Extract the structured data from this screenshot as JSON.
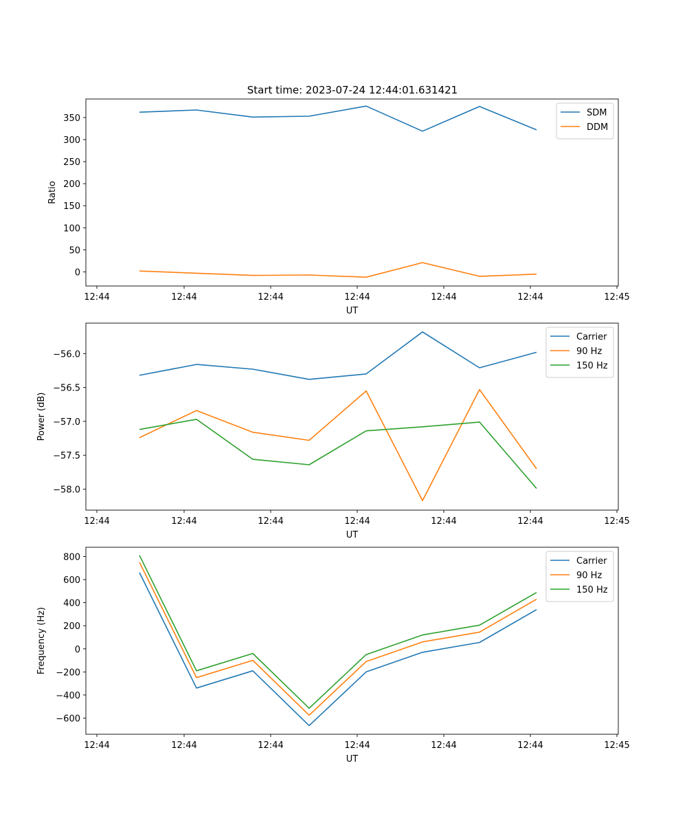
{
  "title": "Start time: 2023-07-24 12:44:01.631421",
  "chart_data": [
    {
      "type": "line",
      "xlabel": "UT",
      "ylabel": "Ratio",
      "xtick_labels": [
        "12:44",
        "12:44",
        "12:44",
        "12:44",
        "12:44",
        "12:44",
        "12:45"
      ],
      "ytick_values": [
        0,
        50,
        100,
        150,
        200,
        250,
        300,
        350
      ],
      "ytick_labels": [
        "0",
        "50",
        "100",
        "150",
        "200",
        "250",
        "300",
        "350"
      ],
      "ylim": [
        -32,
        392
      ],
      "legend_position": "top-right",
      "series": [
        {
          "name": "SDM",
          "color": "#1f77b4",
          "values": [
            362,
            367,
            351,
            353,
            376,
            319,
            375,
            322
          ]
        },
        {
          "name": "DDM",
          "color": "#ff7f0e",
          "values": [
            2,
            -3,
            -8,
            -7,
            -12,
            21,
            -10,
            -5
          ]
        }
      ]
    },
    {
      "type": "line",
      "xlabel": "UT",
      "ylabel": "Power (dB)",
      "xtick_labels": [
        "12:44",
        "12:44",
        "12:44",
        "12:44",
        "12:44",
        "12:44",
        "12:45"
      ],
      "ytick_values": [
        -58.0,
        -57.5,
        -57.0,
        -56.5,
        -56.0
      ],
      "ytick_labels": [
        "−58.0",
        "−57.5",
        "−57.0",
        "−56.5",
        "−56.0"
      ],
      "ylim": [
        -58.31,
        -55.55
      ],
      "legend_position": "top-right",
      "series": [
        {
          "name": "Carrier",
          "color": "#1f77b4",
          "values": [
            -56.32,
            -56.16,
            -56.23,
            -56.38,
            -56.3,
            -55.68,
            -56.21,
            -55.98
          ]
        },
        {
          "name": "90 Hz",
          "color": "#ff7f0e",
          "values": [
            -57.24,
            -56.84,
            -57.16,
            -57.28,
            -56.55,
            -58.17,
            -56.53,
            -57.7
          ]
        },
        {
          "name": "150 Hz",
          "color": "#2ca02c",
          "values": [
            -57.12,
            -56.97,
            -57.56,
            -57.64,
            -57.14,
            -57.08,
            -57.01,
            -57.99
          ]
        }
      ]
    },
    {
      "type": "line",
      "xlabel": "UT",
      "ylabel": "Frequency (Hz)",
      "xtick_labels": [
        "12:44",
        "12:44",
        "12:44",
        "12:44",
        "12:44",
        "12:44",
        "12:45"
      ],
      "ytick_values": [
        -600,
        -400,
        -200,
        0,
        200,
        400,
        600,
        800
      ],
      "ytick_labels": [
        "−600",
        "−400",
        "−200",
        "0",
        "200",
        "400",
        "600",
        "800"
      ],
      "ylim": [
        -740,
        880
      ],
      "legend_position": "top-right",
      "series": [
        {
          "name": "Carrier",
          "color": "#1f77b4",
          "values": [
            660,
            -340,
            -190,
            -665,
            -200,
            -30,
            55,
            340
          ]
        },
        {
          "name": "90 Hz",
          "color": "#ff7f0e",
          "values": [
            750,
            -250,
            -100,
            -575,
            -110,
            60,
            145,
            430
          ]
        },
        {
          "name": "150 Hz",
          "color": "#2ca02c",
          "values": [
            810,
            -190,
            -40,
            -515,
            -50,
            120,
            205,
            488
          ]
        }
      ]
    }
  ]
}
